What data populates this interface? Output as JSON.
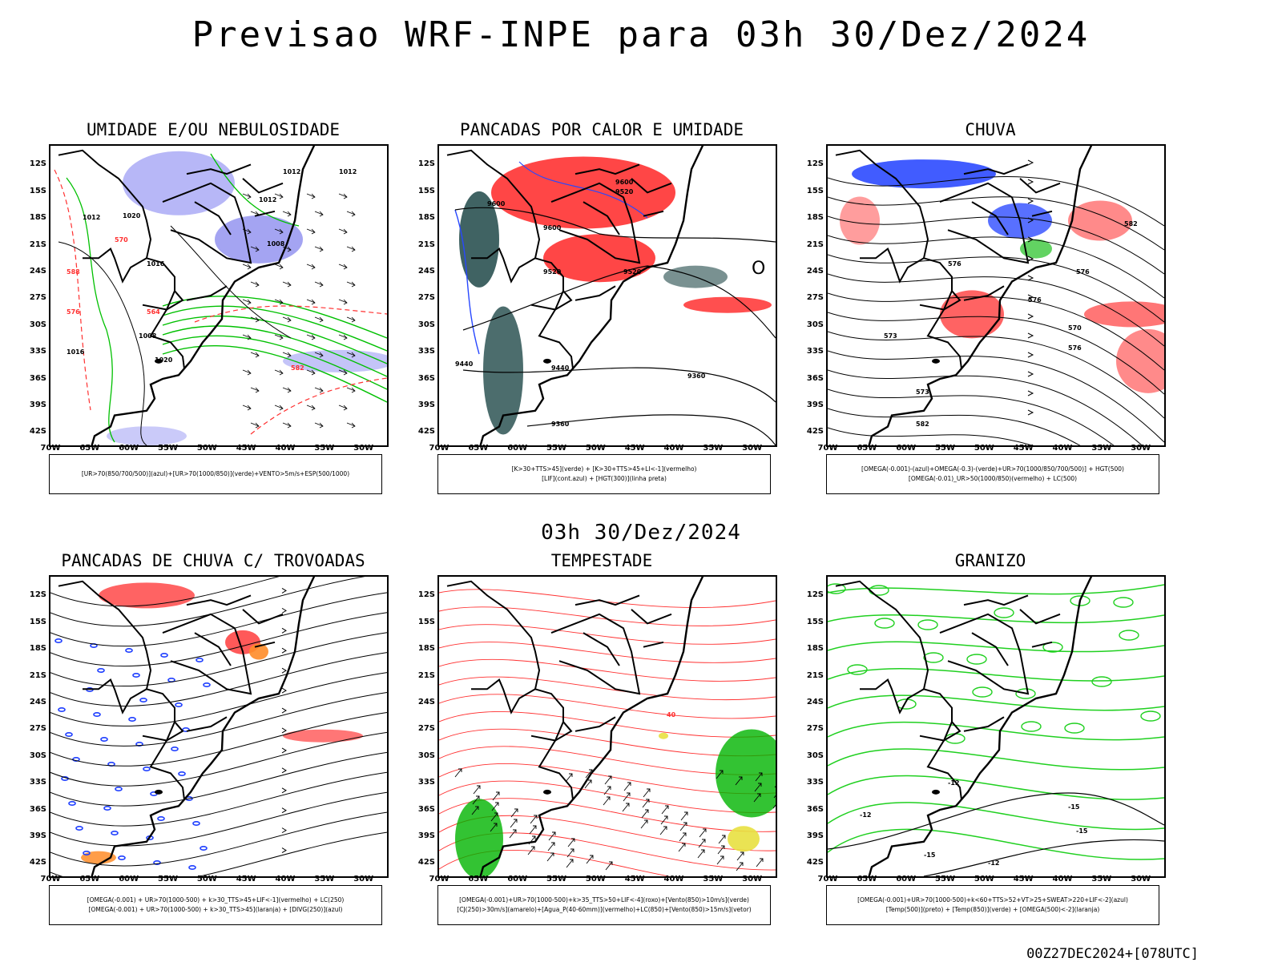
{
  "header": {
    "title": "Previsao WRF-INPE  para 03h 30/Dez/2024",
    "subtitle": "03h 30/Dez/2024",
    "run_code": "00Z27DEC2024+[078UTC]"
  },
  "axes": {
    "lat_ticks": [
      "12S",
      "15S",
      "18S",
      "21S",
      "24S",
      "27S",
      "30S",
      "33S",
      "36S",
      "39S",
      "42S"
    ],
    "lon_ticks": [
      "70W",
      "65W",
      "60W",
      "55W",
      "50W",
      "45W",
      "40W",
      "35W",
      "30W"
    ]
  },
  "panels": [
    {
      "title": "UMIDADE E/OU NEBULOSIDADE",
      "legend": [
        "[UR>70(850/700/500)](azul)+[UR>70(1000/850)](verde)+VENTO>5m/s+ESP(500/1000)"
      ],
      "contour_labels": [
        "1012",
        "1012",
        "1012",
        "1008",
        "1016",
        "1020",
        "1012",
        "1008",
        "1016",
        "1020",
        "576",
        "570",
        "564",
        "582",
        "588"
      ]
    },
    {
      "title": "PANCADAS POR CALOR E UMIDADE",
      "legend": [
        "[K>30+TTS>45](verde) + [K>30+TTS>45+LI<-1](vermelho)",
        "[LIF](cont.azul) + [HGT(300)](linha preta)"
      ],
      "contour_labels": [
        "9600",
        "9600",
        "9600",
        "9520",
        "9520",
        "9520",
        "9440",
        "9440",
        "9360",
        "9360"
      ]
    },
    {
      "title": "CHUVA",
      "legend": [
        "[OMEGA(-0.001)-(azul)+OMEGA(-0.3)-(verde)+UR>70(1000/850/700/500)] + HGT(500)",
        "[OMEGA(-0.01)_UR>50(1000/850)(vermelho) + LC(500)"
      ],
      "contour_labels": [
        "582",
        "576",
        "576",
        "576",
        "573",
        "570",
        "576",
        "573",
        "582"
      ]
    },
    {
      "title": "PANCADAS DE CHUVA C/ TROVOADAS",
      "legend": [
        "[OMEGA(-0.001) + UR>70(1000-500) + k>30_TTS>45+LIF<-1](vermelho) + LC(250)",
        "[OMEGA(-0.001) + UR>70(1000-500) + k>30_TTS>45](laranja) + [DIVG(250)](azul)"
      ],
      "contour_labels": []
    },
    {
      "title": "TEMPESTADE",
      "legend": [
        "[OMEGA(-0.001)+UR>70(1000-500)+k>35_TTS>50+LIF<-4](roxo)+[Vento(850)>10m/s](verde)",
        "[CJ(250)>30m/s](amarelo)+[Agua_P(40-60mm)](vermelho)+LC(850)+[Vento(850)>15m/s](vetor)"
      ],
      "contour_labels": [
        "40"
      ]
    },
    {
      "title": "GRANIZO",
      "legend": [
        "[OMEGA(-0.001)+UR>70(1000-500)+k<60+TTS>52+VT>25+SWEAT>220+LIF<-2](azul)",
        "[Temp(500)](preto) + [Temp(850)](verde) + [OMEGA(500)<-2](laranja)"
      ],
      "contour_labels": [
        "-12",
        "-12",
        "-15",
        "-15",
        "-15",
        "-12"
      ]
    }
  ]
}
